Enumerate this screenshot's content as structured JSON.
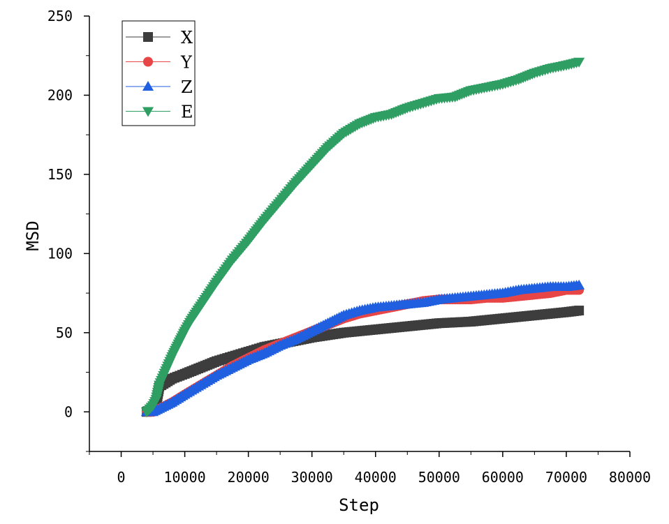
{
  "chart_data": {
    "type": "scatter",
    "title": "",
    "xlabel": "Step",
    "ylabel": "MSD",
    "xlim": [
      -5000,
      80000
    ],
    "ylim": [
      -25,
      250
    ],
    "xticks": [
      0,
      10000,
      20000,
      30000,
      40000,
      50000,
      60000,
      70000,
      80000
    ],
    "xtick_labels": [
      "0",
      "10000",
      "20000",
      "30000",
      "40000",
      "50000",
      "60000",
      "70000",
      "80000"
    ],
    "yticks": [
      0,
      50,
      100,
      150,
      200,
      250
    ],
    "ytick_labels": [
      "0",
      "50",
      "100",
      "150",
      "200",
      "250"
    ],
    "grid": false,
    "legend_position": "top-left",
    "series": [
      {
        "name": "X",
        "marker": "square",
        "color": "#3d3d3d",
        "x": [
          4000,
          5000,
          5500,
          6000,
          8000,
          10000,
          12500,
          15000,
          17500,
          20000,
          22500,
          25000,
          27500,
          30000,
          35000,
          40000,
          45000,
          50000,
          55000,
          60000,
          65000,
          70000,
          72000
        ],
        "y": [
          0,
          1,
          5,
          16,
          21,
          24,
          28,
          32,
          35,
          38,
          41,
          43,
          45,
          47,
          50,
          52,
          54,
          56,
          57,
          59,
          61,
          63,
          64
        ]
      },
      {
        "name": "Y",
        "marker": "circle",
        "color": "#e84646",
        "x": [
          4000,
          5000,
          6000,
          8000,
          10000,
          12500,
          15000,
          17500,
          20000,
          22500,
          25000,
          27500,
          30000,
          32500,
          35000,
          37500,
          40000,
          42500,
          45000,
          47500,
          50000,
          52500,
          55000,
          57500,
          60000,
          62500,
          65000,
          67500,
          70000,
          72000
        ],
        "y": [
          0,
          0,
          2,
          6,
          11,
          17,
          23,
          29,
          34,
          39,
          43,
          47,
          51,
          55,
          59,
          62,
          64,
          66,
          68,
          70,
          71,
          71,
          71,
          72,
          72,
          73,
          74,
          75,
          77,
          77
        ]
      },
      {
        "name": "Z",
        "marker": "triangle-up",
        "color": "#1f5fe0",
        "x": [
          4000,
          5000,
          6000,
          8000,
          10000,
          12500,
          15000,
          17500,
          20000,
          22500,
          25000,
          27500,
          30000,
          32500,
          35000,
          37500,
          40000,
          42500,
          45000,
          47500,
          50000,
          52500,
          55000,
          57500,
          60000,
          62500,
          65000,
          67500,
          70000,
          72000
        ],
        "y": [
          0,
          0,
          2,
          6,
          11,
          17,
          23,
          28,
          33,
          37,
          42,
          46,
          51,
          56,
          61,
          64,
          66,
          67,
          68,
          69,
          71,
          72,
          73,
          74,
          75,
          77,
          78,
          79,
          79,
          80
        ]
      },
      {
        "name": "E",
        "marker": "triangle-down",
        "color": "#2e9e62",
        "x": [
          4000,
          5000,
          5500,
          6000,
          7000,
          8000,
          9000,
          10000,
          11000,
          12500,
          15000,
          17500,
          20000,
          22500,
          25000,
          27500,
          30000,
          32500,
          35000,
          37500,
          40000,
          42500,
          45000,
          47500,
          50000,
          52500,
          55000,
          57500,
          60000,
          62500,
          65000,
          67500,
          70000,
          72000
        ],
        "y": [
          0,
          4,
          8,
          17,
          26,
          35,
          43,
          51,
          58,
          67,
          82,
          96,
          108,
          121,
          133,
          145,
          156,
          167,
          176,
          182,
          186,
          188,
          192,
          195,
          198,
          199,
          203,
          205,
          207,
          210,
          214,
          217,
          219,
          221
        ]
      }
    ]
  }
}
